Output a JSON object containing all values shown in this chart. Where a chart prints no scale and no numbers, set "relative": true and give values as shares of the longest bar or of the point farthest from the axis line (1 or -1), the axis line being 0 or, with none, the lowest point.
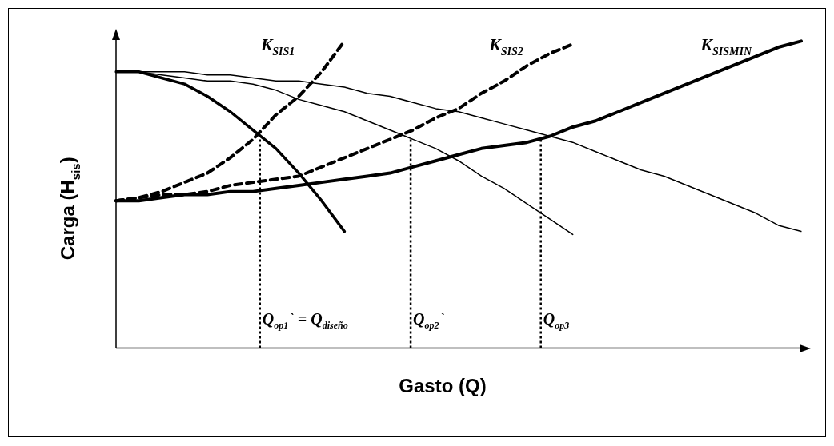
{
  "chart_data": {
    "type": "line",
    "relative": true,
    "xlabel": "Gasto (Q)",
    "ylabel": "Carga (H$_{sis}$)",
    "legend": false,
    "marker": "none",
    "categories": [
      null,
      null,
      null,
      null,
      null,
      null,
      null,
      null,
      null,
      null,
      null,
      null,
      null,
      null,
      null,
      null,
      null,
      null,
      null,
      null,
      null,
      null,
      null,
      null,
      null,
      null,
      null,
      null,
      null,
      null,
      null
    ],
    "series": [
      {
        "color": "#000000",
        "line_style": "solid",
        "values": [
          0.9,
          0.9,
          0.88,
          0.86,
          0.82,
          0.77,
          0.71,
          0.65,
          0.57,
          0.48,
          0.38,
          null,
          null,
          null,
          null,
          null,
          null,
          null,
          null,
          null,
          null,
          null,
          null,
          null,
          null,
          null,
          null,
          null,
          null,
          null,
          null
        ]
      },
      {
        "color": "#000000",
        "line_style": "solid",
        "values": [
          0.9,
          0.9,
          0.89,
          0.88,
          0.87,
          0.87,
          0.86,
          0.84,
          0.81,
          0.79,
          0.77,
          0.74,
          0.71,
          0.68,
          0.65,
          0.61,
          0.56,
          0.52,
          0.47,
          0.42,
          0.37,
          null,
          null,
          null,
          null,
          null,
          null,
          null,
          null,
          null,
          null
        ]
      },
      {
        "color": "#000000",
        "line_style": "solid",
        "values": [
          0.9,
          0.9,
          0.9,
          0.9,
          0.89,
          0.89,
          0.88,
          0.87,
          0.87,
          0.86,
          0.85,
          0.83,
          0.82,
          0.8,
          0.78,
          0.77,
          0.75,
          0.73,
          0.71,
          0.69,
          0.67,
          0.64,
          0.61,
          0.58,
          0.56,
          0.53,
          0.5,
          0.47,
          0.44,
          0.4,
          0.38
        ]
      },
      {
        "name": "K$_{SIS1}$",
        "color": "#000000",
        "line_style": "dashed",
        "values": [
          0.48,
          0.49,
          0.51,
          0.54,
          0.57,
          0.62,
          0.68,
          0.76,
          0.82,
          0.9,
          1.0,
          null,
          null,
          null,
          null,
          null,
          null,
          null,
          null,
          null,
          null,
          null,
          null,
          null,
          null,
          null,
          null,
          null,
          null,
          null,
          null
        ]
      },
      {
        "name": "K$_{SIS2}$",
        "color": "#000000",
        "line_style": "dashed",
        "values": [
          0.48,
          0.49,
          0.5,
          0.5,
          0.51,
          0.53,
          0.54,
          0.55,
          0.56,
          0.59,
          0.62,
          0.65,
          0.68,
          0.71,
          0.75,
          0.78,
          0.83,
          0.87,
          0.92,
          0.96,
          0.99,
          null,
          null,
          null,
          null,
          null,
          null,
          null,
          null,
          null,
          null
        ]
      },
      {
        "name": "K$_{SISMIN}$",
        "color": "#000000",
        "line_style": "solid",
        "values": [
          0.48,
          0.48,
          0.49,
          0.5,
          0.5,
          0.51,
          0.51,
          0.52,
          0.53,
          0.54,
          0.55,
          0.56,
          0.57,
          0.59,
          0.61,
          0.63,
          0.65,
          0.66,
          0.67,
          0.69,
          0.72,
          0.74,
          0.77,
          0.8,
          0.83,
          0.86,
          0.89,
          0.92,
          0.95,
          0.98,
          1.0
        ]
      }
    ],
    "annotations": [
      "Q$_{op1}$` = Q$_{diseño}$",
      "Q$_{op2}$`",
      "Q$_{op3}$"
    ]
  }
}
